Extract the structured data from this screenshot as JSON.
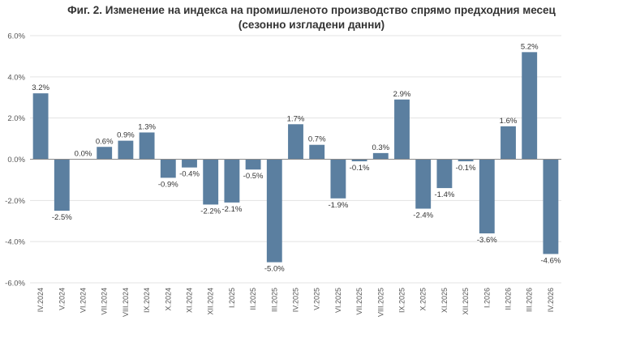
{
  "chart_data": {
    "type": "bar",
    "title": "Фиг. 2. Изменение на индекса на промишленото производство спрямо предходния месец",
    "subtitle": "(сезонно изгладени данни)",
    "categories": [
      "IV.2024",
      "V.2024",
      "VI.2024",
      "VII.2024",
      "VIII.2024",
      "IX.2024",
      "X.2024",
      "XI.2024",
      "XII.2024",
      "I.2025",
      "II.2025",
      "III.2025",
      "IV.2025",
      "V.2025",
      "VI.2025",
      "VII.2025",
      "VIII.2025",
      "IX.2025",
      "X.2025",
      "XI.2025",
      "XII.2025",
      "I.2026",
      "II.2026",
      "III.2026",
      "IV.2026"
    ],
    "values": [
      3.2,
      -2.5,
      0.0,
      0.6,
      0.9,
      1.3,
      -0.9,
      -0.4,
      -2.2,
      -2.1,
      -0.5,
      -5.0,
      1.7,
      0.7,
      -1.9,
      -0.1,
      0.3,
      2.9,
      -2.4,
      -1.4,
      -0.1,
      -3.6,
      1.6,
      5.2,
      -4.6
    ],
    "data_labels": [
      "3.2%",
      "-2.5%",
      "0.0%",
      "0.6%",
      "0.9%",
      "1.3%",
      "-0.9%",
      "-0.4%",
      "-2.2%",
      "-2.1%",
      "-0.5%",
      "-5.0%",
      "1.7%",
      "0.7%",
      "-1.9%",
      "-0.1%",
      "0.3%",
      "2.9%",
      "-2.4%",
      "-1.4%",
      "-0.1%",
      "-3.6%",
      "1.6%",
      "5.2%",
      "-4.6%"
    ],
    "y_ticks": [
      6,
      4,
      2,
      0,
      -2,
      -4,
      -6
    ],
    "y_tick_labels": [
      "6.0%",
      "4.0%",
      "2.0%",
      "0.0%",
      "-2.0%",
      "-4.0%",
      "-6.0%"
    ],
    "ylim": [
      -6,
      6
    ],
    "grid": true,
    "bar_color": "#5b7fa0"
  }
}
